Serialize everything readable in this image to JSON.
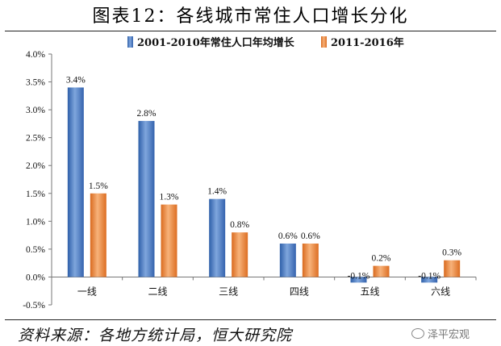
{
  "figure": {
    "title": "图表12：各线城市常住人口增长分化",
    "source": "资料来源：各地方统计局，恒大研究院",
    "watermark": "泽平宏观"
  },
  "chart_data": {
    "type": "bar",
    "title": "",
    "xlabel": "",
    "ylabel": "",
    "categories": [
      "一线",
      "二线",
      "三线",
      "四线",
      "五线",
      "六线"
    ],
    "series": [
      {
        "name": "2001-2010年常住人口年均增长",
        "values": [
          3.4,
          2.8,
          1.4,
          0.6,
          -0.1,
          -0.1
        ],
        "labels": [
          "3.4%",
          "2.8%",
          "1.4%",
          "0.6%",
          "-0.1%",
          "-0.1%"
        ],
        "color": "#4472C4"
      },
      {
        "name": "2011-2016年",
        "values": [
          1.5,
          1.3,
          0.8,
          0.6,
          0.2,
          0.3
        ],
        "labels": [
          "1.5%",
          "1.3%",
          "0.8%",
          "0.6%",
          "0.2%",
          "0.3%"
        ],
        "color": "#ED7D31"
      }
    ],
    "ylim": [
      -0.5,
      4.0
    ],
    "yticks": [
      -0.5,
      0.0,
      0.5,
      1.0,
      1.5,
      2.0,
      2.5,
      3.0,
      3.5,
      4.0
    ],
    "ytick_labels": [
      "-0.5%",
      "0.0%",
      "0.5%",
      "1.0%",
      "1.5%",
      "2.0%",
      "2.5%",
      "3.0%",
      "3.5%",
      "4.0%"
    ],
    "legend_position": "top-center",
    "grid": false
  }
}
